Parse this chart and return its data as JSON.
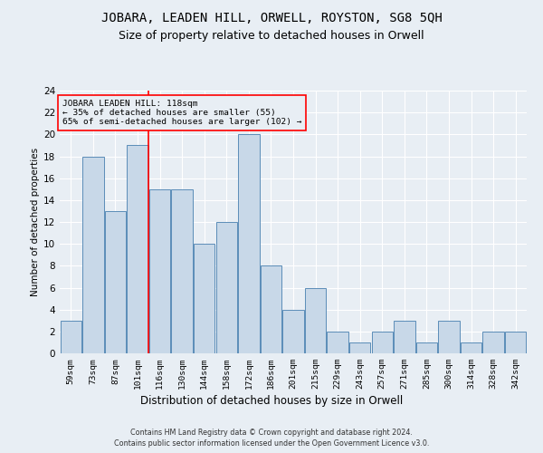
{
  "title": "JOBARA, LEADEN HILL, ORWELL, ROYSTON, SG8 5QH",
  "subtitle": "Size of property relative to detached houses in Orwell",
  "xlabel": "Distribution of detached houses by size in Orwell",
  "ylabel": "Number of detached properties",
  "footer_line1": "Contains HM Land Registry data © Crown copyright and database right 2024.",
  "footer_line2": "Contains public sector information licensed under the Open Government Licence v3.0.",
  "categories": [
    "59sqm",
    "73sqm",
    "87sqm",
    "101sqm",
    "116sqm",
    "130sqm",
    "144sqm",
    "158sqm",
    "172sqm",
    "186sqm",
    "201sqm",
    "215sqm",
    "229sqm",
    "243sqm",
    "257sqm",
    "271sqm",
    "285sqm",
    "300sqm",
    "314sqm",
    "328sqm",
    "342sqm"
  ],
  "values": [
    3,
    18,
    13,
    19,
    15,
    15,
    10,
    12,
    20,
    8,
    4,
    6,
    2,
    1,
    2,
    3,
    1,
    3,
    1,
    2,
    2
  ],
  "bar_color": "#c8d8e8",
  "bar_edge_color": "#5b8db8",
  "red_line_x": 3.5,
  "annotation_title": "JOBARA LEADEN HILL: 118sqm",
  "annotation_line1": "← 35% of detached houses are smaller (55)",
  "annotation_line2": "65% of semi-detached houses are larger (102) →",
  "ylim": [
    0,
    24
  ],
  "yticks": [
    0,
    2,
    4,
    6,
    8,
    10,
    12,
    14,
    16,
    18,
    20,
    22,
    24
  ],
  "background_color": "#e8eef4",
  "grid_color": "#ffffff",
  "title_fontsize": 10,
  "subtitle_fontsize": 9
}
